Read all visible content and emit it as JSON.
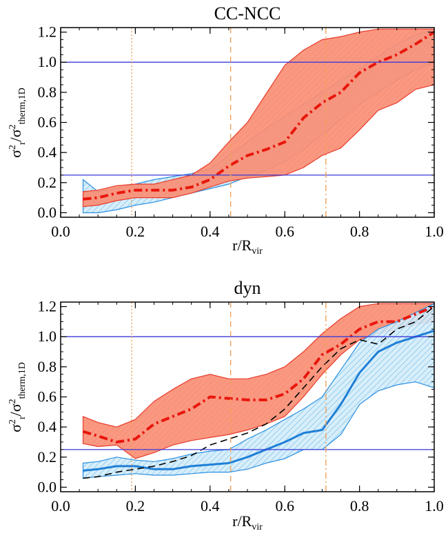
{
  "chart_data": [
    {
      "type": "area",
      "title": "CC-NCC",
      "xlabel": "r/R_vir",
      "ylabel": "σ²_r/σ²_therm,1D",
      "xlim": [
        0.0,
        1.0
      ],
      "ylim": [
        -0.03,
        1.23
      ],
      "xticks": [
        "0.0",
        "0.2",
        "0.4",
        "0.6",
        "0.8",
        "1.0"
      ],
      "yticks": [
        "0.0",
        "0.2",
        "0.4",
        "0.6",
        "0.8",
        "1.0",
        "1.2"
      ],
      "hlines": [
        0.25,
        1.0
      ],
      "vlines": [
        {
          "x": 0.19,
          "style": "dotted"
        },
        {
          "x": 0.455,
          "style": "dashed"
        },
        {
          "x": 0.71,
          "style": "dashdot"
        }
      ],
      "series": [
        {
          "kind": "band",
          "color": "#5bb6e8",
          "x": [
            0.06,
            0.1,
            0.15,
            0.2,
            0.25,
            0.3,
            0.35,
            0.4,
            0.45,
            0.5,
            0.55,
            0.6,
            0.65,
            0.7,
            0.75,
            0.8,
            0.85,
            0.9,
            0.95,
            1.0
          ],
          "low": [
            0.0,
            0.0,
            0.02,
            0.05,
            0.07,
            0.1,
            0.13,
            0.16,
            0.19,
            0.24,
            0.28,
            0.34,
            0.42,
            0.52,
            0.62,
            0.72,
            0.8,
            0.88,
            0.95,
            1.0
          ],
          "high": [
            0.22,
            0.14,
            0.16,
            0.19,
            0.22,
            0.24,
            0.26,
            0.29,
            0.38,
            0.47,
            0.56,
            0.64,
            0.72,
            0.8,
            0.88,
            0.96,
            1.04,
            1.12,
            1.18,
            1.22
          ]
        },
        {
          "kind": "band",
          "color": "#fa8c72",
          "x": [
            0.06,
            0.1,
            0.15,
            0.2,
            0.25,
            0.3,
            0.35,
            0.4,
            0.45,
            0.5,
            0.55,
            0.6,
            0.65,
            0.7,
            0.75,
            0.8,
            0.85,
            0.9,
            0.95,
            1.0
          ],
          "low": [
            0.04,
            0.05,
            0.08,
            0.1,
            0.1,
            0.1,
            0.13,
            0.17,
            0.21,
            0.23,
            0.24,
            0.25,
            0.3,
            0.38,
            0.43,
            0.55,
            0.68,
            0.73,
            0.82,
            0.85
          ],
          "high": [
            0.14,
            0.15,
            0.18,
            0.19,
            0.19,
            0.22,
            0.25,
            0.33,
            0.47,
            0.6,
            0.79,
            0.98,
            1.08,
            1.15,
            1.17,
            1.2,
            1.22,
            1.22,
            1.22,
            1.22
          ]
        },
        {
          "kind": "line",
          "name": "",
          "color": "#e8160c",
          "style": "dashdot",
          "x": [
            0.06,
            0.1,
            0.15,
            0.2,
            0.25,
            0.3,
            0.35,
            0.4,
            0.45,
            0.5,
            0.55,
            0.6,
            0.65,
            0.7,
            0.75,
            0.8,
            0.85,
            0.9,
            0.95,
            1.0
          ],
          "values": [
            0.09,
            0.1,
            0.13,
            0.15,
            0.15,
            0.15,
            0.17,
            0.22,
            0.31,
            0.38,
            0.42,
            0.47,
            0.63,
            0.73,
            0.8,
            0.93,
            1.0,
            1.05,
            1.12,
            1.2
          ]
        }
      ]
    },
    {
      "type": "area",
      "title": "dyn",
      "xlabel": "r/R_vir",
      "ylabel": "σ²_r/σ²_therm,1D",
      "xlim": [
        0.0,
        1.0
      ],
      "ylim": [
        -0.03,
        1.23
      ],
      "xticks": [
        "0.0",
        "0.2",
        "0.4",
        "0.6",
        "0.8",
        "1.0"
      ],
      "yticks": [
        "0.0",
        "0.2",
        "0.4",
        "0.6",
        "0.8",
        "1.0",
        "1.2"
      ],
      "hlines": [
        0.25,
        1.0
      ],
      "vlines": [
        {
          "x": 0.19,
          "style": "dotted"
        },
        {
          "x": 0.455,
          "style": "dashed"
        },
        {
          "x": 0.71,
          "style": "dashdot"
        }
      ],
      "series": [
        {
          "kind": "band",
          "color": "#fa8c72",
          "x": [
            0.06,
            0.1,
            0.15,
            0.2,
            0.25,
            0.3,
            0.35,
            0.4,
            0.45,
            0.5,
            0.55,
            0.6,
            0.65,
            0.7,
            0.75,
            0.8,
            0.85,
            0.9,
            0.95,
            1.0
          ],
          "low": [
            0.29,
            0.27,
            0.28,
            0.19,
            0.23,
            0.28,
            0.31,
            0.33,
            0.35,
            0.38,
            0.42,
            0.47,
            0.6,
            0.75,
            0.88,
            0.98,
            1.02,
            1.05,
            1.08,
            1.1
          ],
          "high": [
            0.47,
            0.43,
            0.4,
            0.45,
            0.57,
            0.65,
            0.72,
            0.75,
            0.72,
            0.72,
            0.75,
            0.8,
            0.9,
            1.02,
            1.12,
            1.2,
            1.22,
            1.22,
            1.22,
            1.22
          ]
        },
        {
          "kind": "band",
          "color": "#5bb6e8",
          "x": [
            0.06,
            0.1,
            0.15,
            0.2,
            0.25,
            0.3,
            0.35,
            0.4,
            0.45,
            0.5,
            0.55,
            0.6,
            0.65,
            0.7,
            0.75,
            0.8,
            0.85,
            0.9,
            0.95,
            1.0
          ],
          "low": [
            0.06,
            0.07,
            0.08,
            0.09,
            0.08,
            0.08,
            0.09,
            0.1,
            0.1,
            0.12,
            0.16,
            0.19,
            0.25,
            0.25,
            0.35,
            0.55,
            0.64,
            0.68,
            0.7,
            0.66
          ],
          "high": [
            0.16,
            0.17,
            0.2,
            0.18,
            0.17,
            0.19,
            0.22,
            0.24,
            0.25,
            0.32,
            0.38,
            0.45,
            0.52,
            0.6,
            0.78,
            0.96,
            1.05,
            1.1,
            1.16,
            1.22
          ]
        },
        {
          "kind": "line",
          "name": "",
          "color": "#e8160c",
          "style": "dashdot",
          "x": [
            0.06,
            0.1,
            0.15,
            0.2,
            0.25,
            0.3,
            0.35,
            0.4,
            0.45,
            0.5,
            0.55,
            0.6,
            0.65,
            0.7,
            0.75,
            0.8,
            0.85,
            0.9,
            0.95,
            1.0
          ],
          "values": [
            0.37,
            0.34,
            0.3,
            0.32,
            0.42,
            0.47,
            0.52,
            0.6,
            0.59,
            0.58,
            0.58,
            0.62,
            0.72,
            0.88,
            0.95,
            1.05,
            1.1,
            1.1,
            1.15,
            1.2
          ]
        },
        {
          "kind": "line",
          "name": "",
          "color": "#1f7fd6",
          "style": "solid",
          "x": [
            0.06,
            0.1,
            0.15,
            0.2,
            0.25,
            0.3,
            0.35,
            0.4,
            0.45,
            0.5,
            0.55,
            0.6,
            0.65,
            0.7,
            0.75,
            0.8,
            0.85,
            0.9,
            0.95,
            1.0
          ],
          "values": [
            0.11,
            0.12,
            0.14,
            0.14,
            0.12,
            0.12,
            0.14,
            0.15,
            0.16,
            0.2,
            0.25,
            0.3,
            0.36,
            0.38,
            0.55,
            0.76,
            0.9,
            0.96,
            1.0,
            1.04
          ]
        },
        {
          "kind": "line",
          "name": "",
          "color": "#000000",
          "style": "dashed",
          "x": [
            0.06,
            0.1,
            0.15,
            0.2,
            0.25,
            0.3,
            0.35,
            0.4,
            0.45,
            0.5,
            0.55,
            0.6,
            0.65,
            0.7,
            0.75,
            0.8,
            0.85,
            0.9,
            0.95,
            1.0
          ],
          "values": [
            0.06,
            0.07,
            0.1,
            0.12,
            0.14,
            0.17,
            0.21,
            0.28,
            0.32,
            0.36,
            0.42,
            0.52,
            0.66,
            0.8,
            0.92,
            0.98,
            0.95,
            1.05,
            1.1,
            1.2
          ]
        }
      ]
    }
  ],
  "colors": {
    "hline": "#3a3ad8",
    "vline": "#f0a05a",
    "red_band_fill": "#fa8c72",
    "red_band_edge": "#e83a2a",
    "blue_band_fill": "#bfe1f6",
    "blue_band_edge": "#2a8fe0"
  }
}
